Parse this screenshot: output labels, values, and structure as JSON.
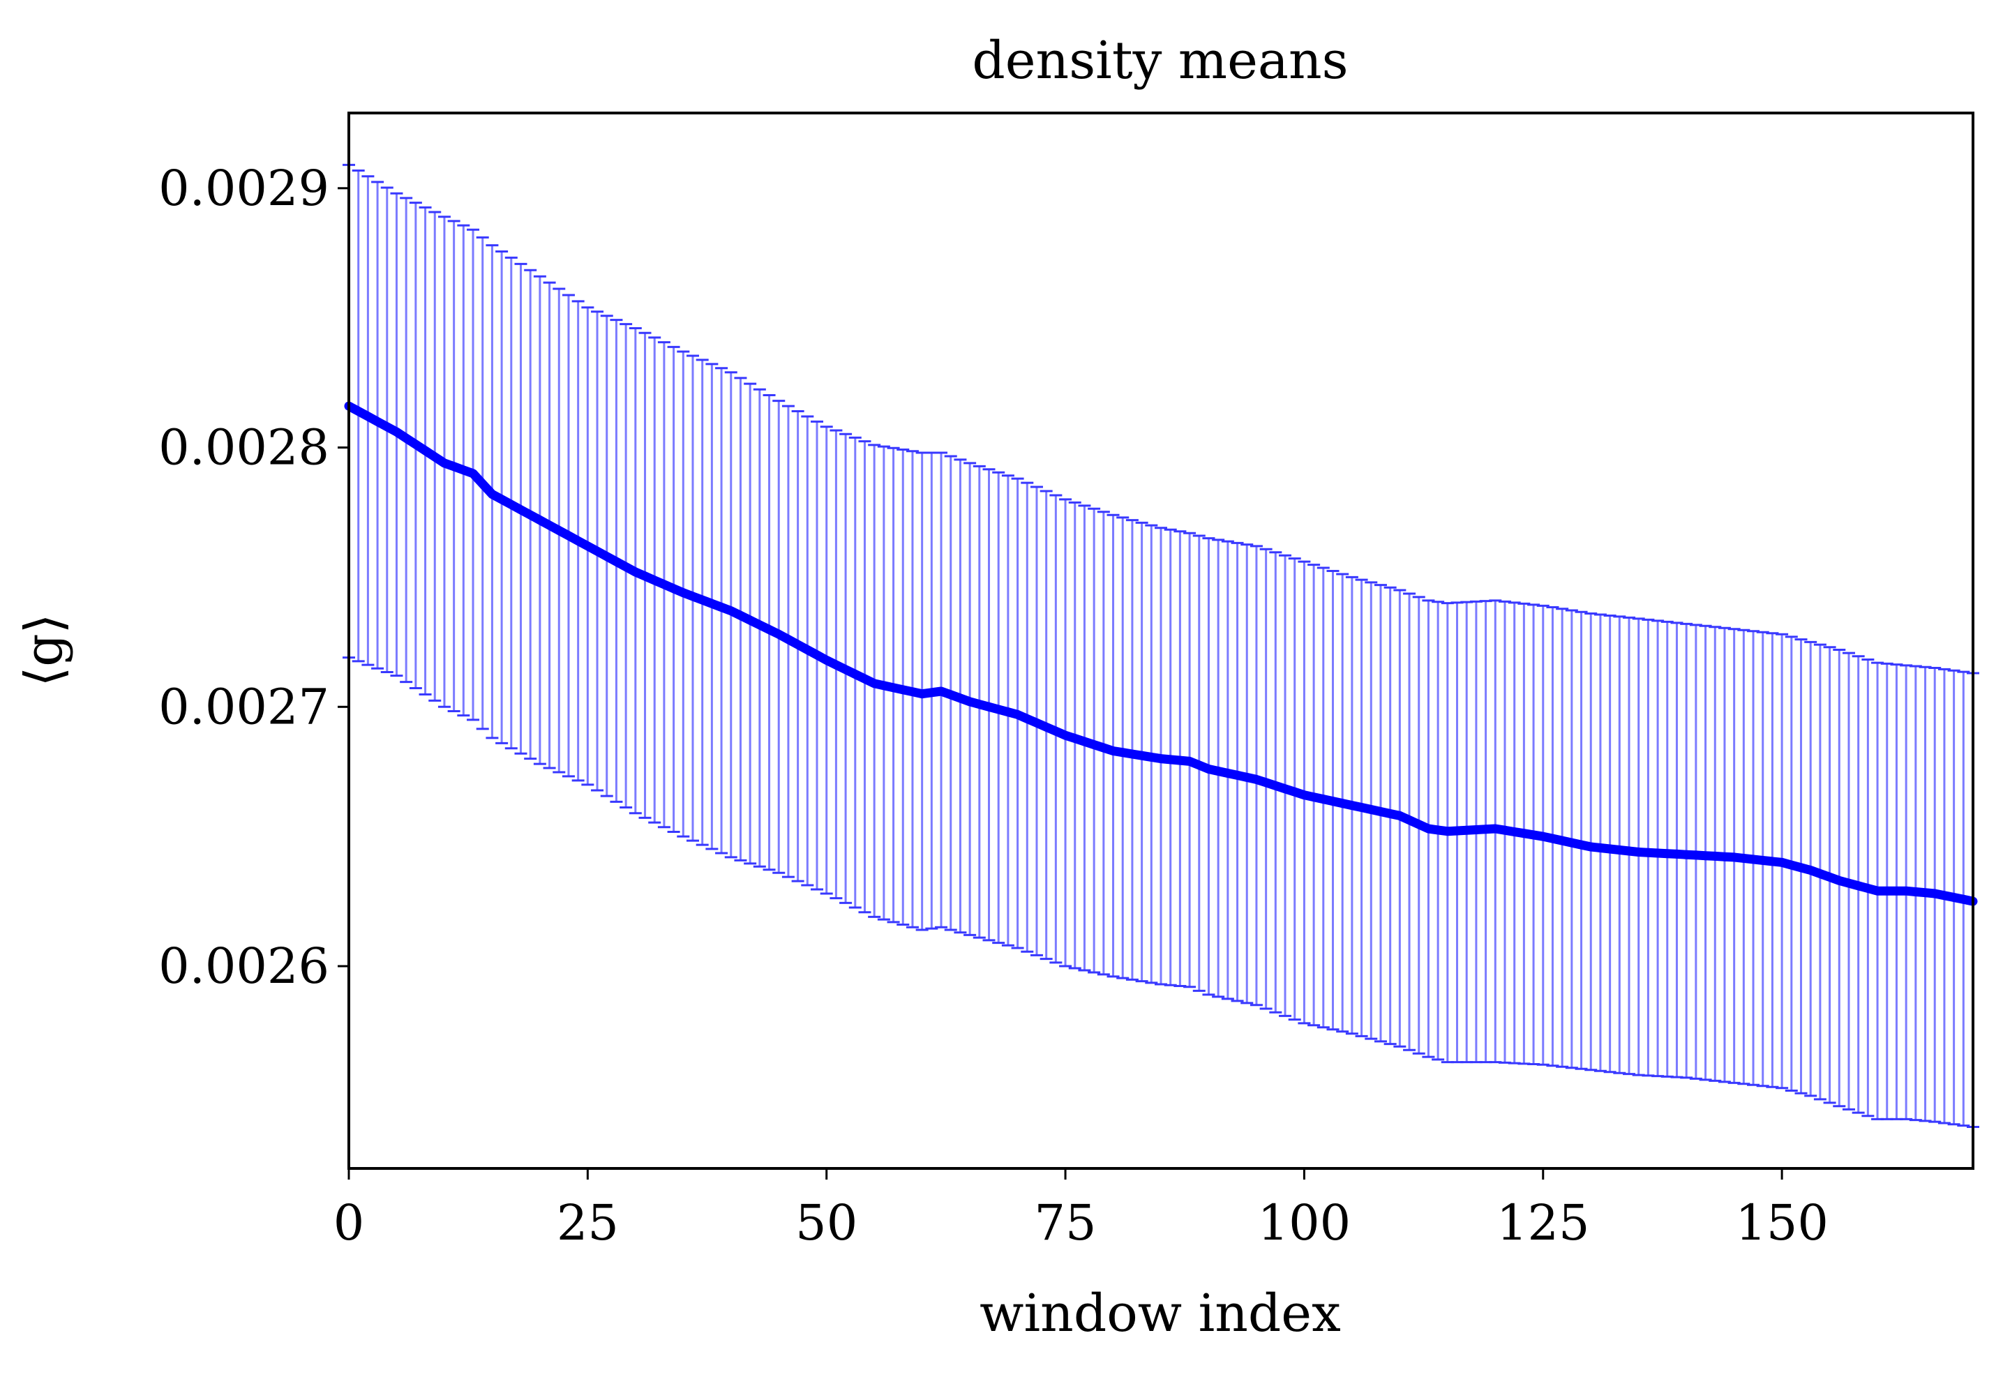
{
  "chart_data": {
    "type": "line",
    "title": "density means",
    "xlabel": "window index",
    "ylabel": "⟨g⟩",
    "xlim": [
      0,
      170
    ],
    "ylim": [
      0.002522,
      0.002929
    ],
    "x_ticks": [
      0,
      25,
      50,
      75,
      100,
      125,
      150
    ],
    "x_tick_labels": [
      "0",
      "25",
      "50",
      "75",
      "100",
      "125",
      "150"
    ],
    "y_ticks": [
      0.0026,
      0.0027,
      0.0028,
      0.0029
    ],
    "y_tick_labels": [
      "0.0026",
      "0.0027",
      "0.0028",
      "0.0029"
    ],
    "grid": false,
    "colors": {
      "line": "#0000ff",
      "errorbar": "#7b7bff",
      "cap": "#3838ff"
    },
    "series": [
      {
        "x_points": [
          0,
          5,
          10,
          13,
          15,
          20,
          25,
          30,
          35,
          40,
          45,
          50,
          55,
          60,
          62,
          65,
          70,
          75,
          80,
          85,
          88,
          90,
          95,
          100,
          105,
          110,
          113,
          115,
          120,
          125,
          130,
          135,
          140,
          145,
          150,
          153,
          156,
          160,
          163,
          166,
          170
        ],
        "mean": [
          0.002816,
          0.002806,
          0.002794,
          0.00279,
          0.002782,
          0.002772,
          0.002762,
          0.002752,
          0.002744,
          0.002737,
          0.002728,
          0.002718,
          0.002709,
          0.002705,
          0.002706,
          0.002702,
          0.002697,
          0.002689,
          0.002683,
          0.00268,
          0.002679,
          0.002676,
          0.002672,
          0.002666,
          0.002662,
          0.002658,
          0.002653,
          0.002652,
          0.002653,
          0.00265,
          0.002646,
          0.002644,
          0.002643,
          0.002642,
          0.00264,
          0.002637,
          0.002633,
          0.002629,
          0.002629,
          0.002628,
          0.002625
        ],
        "upper": [
          0.002909,
          0.002898,
          0.002889,
          0.002884,
          0.002878,
          0.002866,
          0.002854,
          0.002846,
          0.002837,
          0.002829,
          0.002818,
          0.002808,
          0.002801,
          0.002798,
          0.002798,
          0.002794,
          0.002788,
          0.00278,
          0.002774,
          0.002769,
          0.002767,
          0.002765,
          0.002762,
          0.002756,
          0.00275,
          0.002745,
          0.002741,
          0.00274,
          0.002741,
          0.002739,
          0.002736,
          0.002734,
          0.002732,
          0.00273,
          0.002728,
          0.002725,
          0.002722,
          0.002717,
          0.002716,
          0.002715,
          0.002713
        ],
        "lower": [
          0.002719,
          0.002712,
          0.0027,
          0.002695,
          0.002688,
          0.002678,
          0.00267,
          0.002659,
          0.00265,
          0.002642,
          0.002636,
          0.002628,
          0.002619,
          0.002614,
          0.002615,
          0.002612,
          0.002607,
          0.0026,
          0.002596,
          0.002593,
          0.002592,
          0.002589,
          0.002585,
          0.002578,
          0.002574,
          0.002569,
          0.002565,
          0.002563,
          0.002563,
          0.002562,
          0.00256,
          0.002558,
          0.002557,
          0.002555,
          0.002553,
          0.00255,
          0.002546,
          0.002541,
          0.002541,
          0.00254,
          0.002538
        ]
      }
    ]
  }
}
